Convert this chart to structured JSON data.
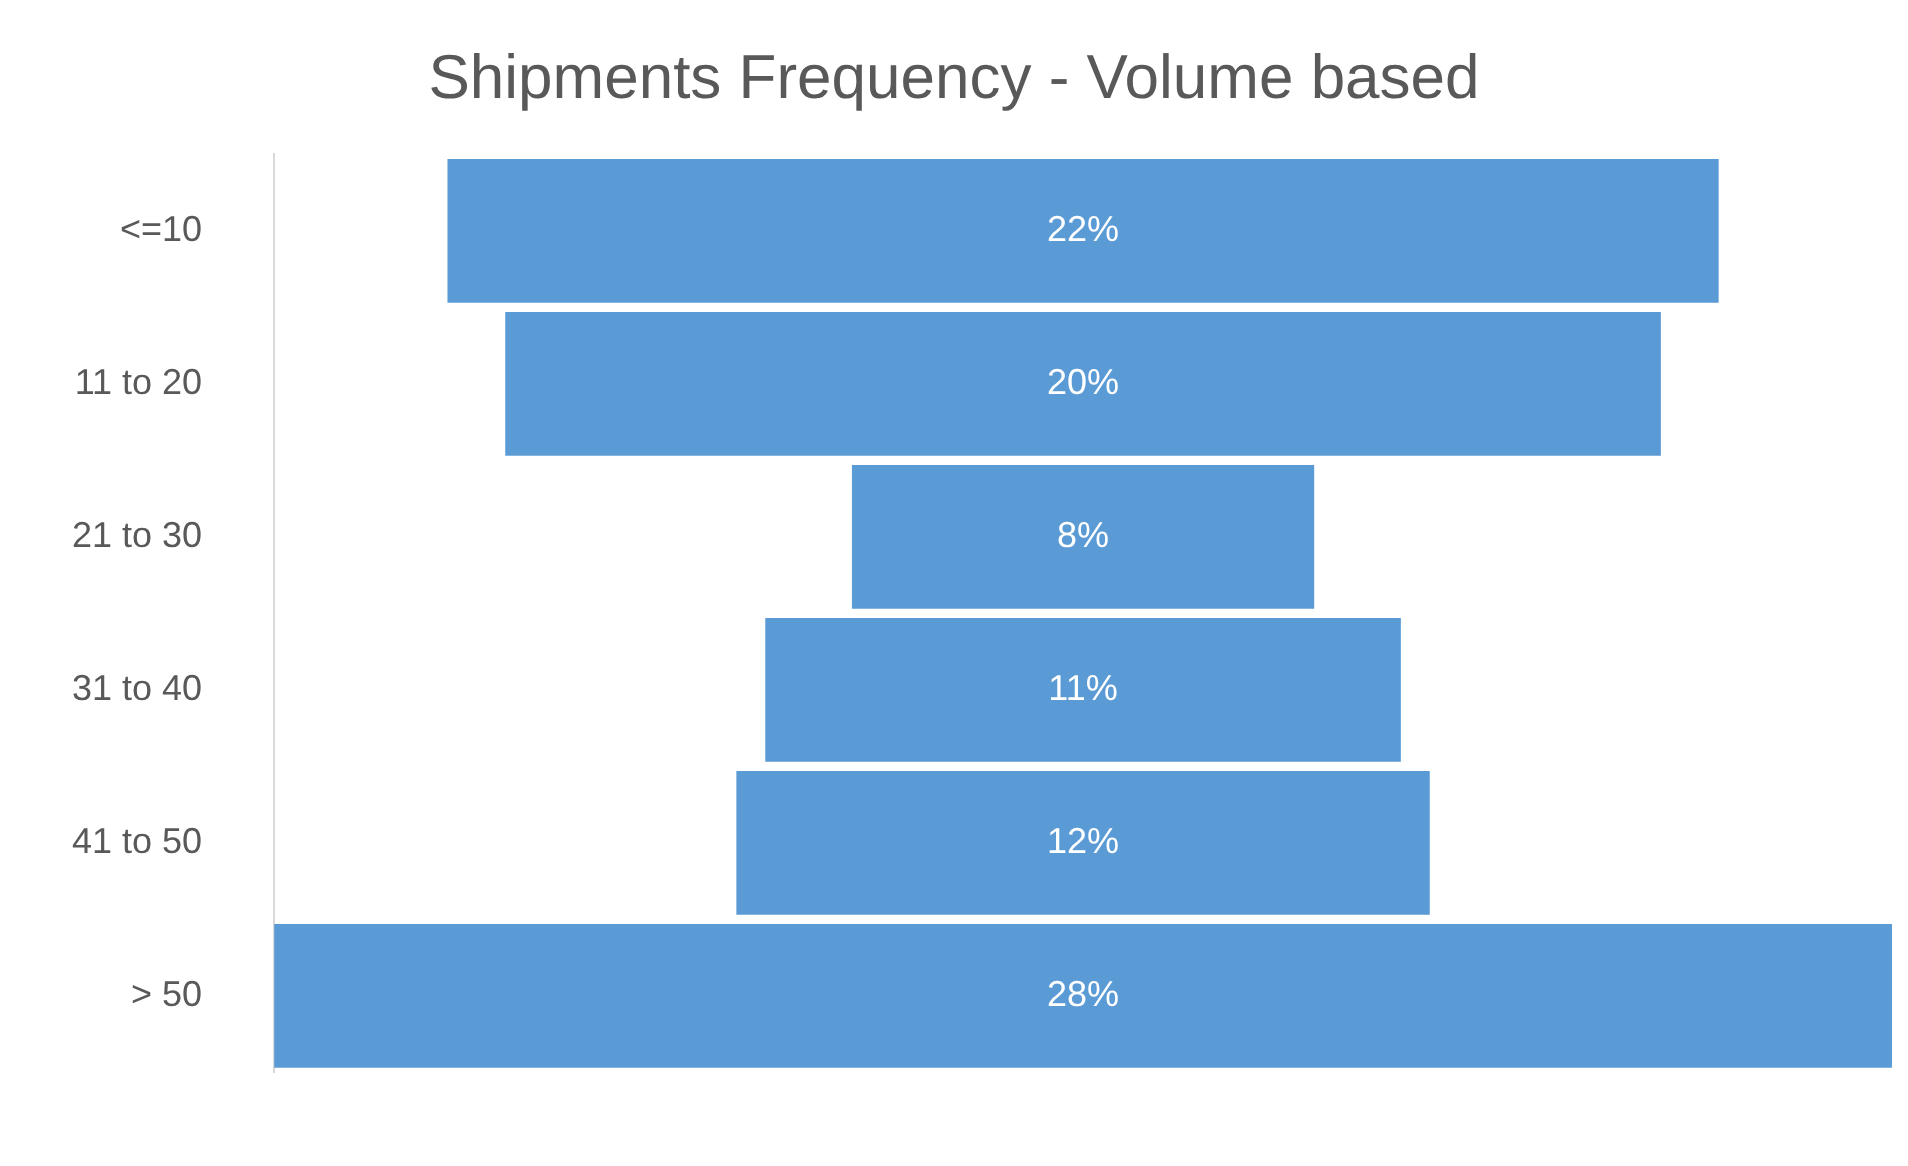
{
  "chart_data": {
    "type": "other",
    "title": "Shipments Frequency - Volume based",
    "categories": [
      "<=10",
      "11 to 20",
      "21 to 30",
      "31 to 40",
      "41 to 50",
      "> 50"
    ],
    "values": [
      22,
      20,
      8,
      11,
      12,
      28
    ],
    "value_labels": [
      "22%",
      "20%",
      "8%",
      "11%",
      "12%",
      "28%"
    ],
    "color": "#5b9bd5",
    "legend": false
  }
}
